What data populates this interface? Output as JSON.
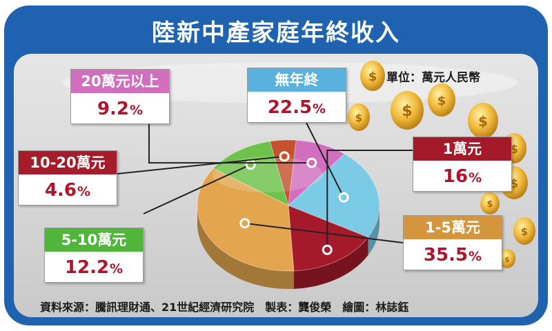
{
  "title": "陸新中產家庭年終收入",
  "unit": "單位：萬元人民幣",
  "source": "資料來源：騰訊理財通、21世紀經濟研究院　製表：龔俊榮　繪圖：林誌鈺",
  "colors": {
    "frame": "#1f63b0",
    "panel": "#dcdcdc",
    "value_text": "#b0132b"
  },
  "chart_data": {
    "type": "pie",
    "categories": [
      "無年終",
      "1萬元",
      "1-5萬元",
      "5-10萬元",
      "10-20萬元",
      "20萬元以上"
    ],
    "values": [
      22.5,
      16,
      35.5,
      12.2,
      4.6,
      9.2
    ],
    "labels": [
      "22.5%",
      "16%",
      "35.5%",
      "12.2%",
      "4.6%",
      "9.2%"
    ],
    "colors": [
      "#7ccbe6",
      "#a41a2a",
      "#e3a54e",
      "#6cc24a",
      "#c4522e",
      "#d16fbe"
    ],
    "legend": "callouts"
  }
}
